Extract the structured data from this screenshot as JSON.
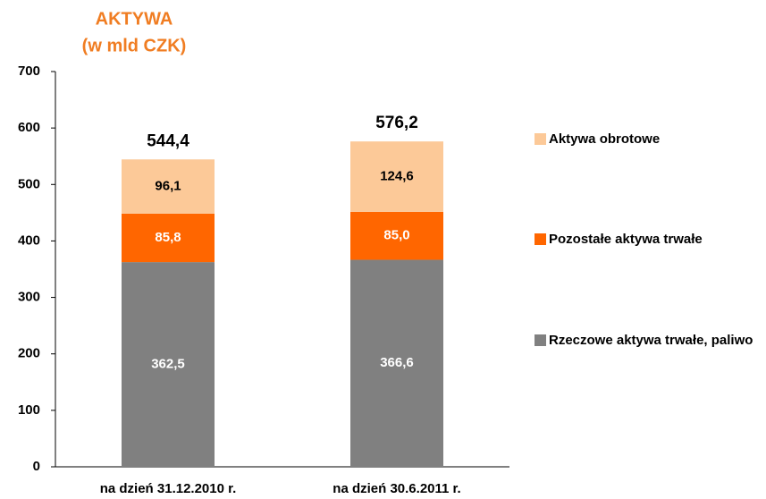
{
  "chart_data": {
    "type": "stacked_bar",
    "title": "AKTYWA",
    "subtitle": "(w mld CZK)",
    "categories": [
      "na dzień 31.12.2010 r.",
      "na dzień 30.6.2011 r."
    ],
    "series": [
      {
        "name": "Rzeczowe aktywa trwałe, paliwo",
        "color": "#808080",
        "label_color": "#ffffff",
        "values": [
          362.5,
          366.6
        ],
        "value_labels": [
          "362,5",
          "366,6"
        ]
      },
      {
        "name": "Pozostałe aktywa trwałe",
        "color": "#ff6600",
        "label_color": "#ffffff",
        "values": [
          85.8,
          85.0
        ],
        "value_labels": [
          "85,8",
          "85,0"
        ]
      },
      {
        "name": "Aktywa obrotowe",
        "color": "#fcc998",
        "label_color": "#000000",
        "values": [
          96.1,
          124.6
        ],
        "value_labels": [
          "96,1",
          "124,6"
        ]
      }
    ],
    "totals": [
      544.4,
      576.2
    ],
    "total_labels": [
      "544,4",
      "576,2"
    ],
    "ylim": [
      0,
      700
    ],
    "yticks": [
      0,
      100,
      200,
      300,
      400,
      500,
      600,
      700
    ],
    "grid": false,
    "legend": "right"
  }
}
